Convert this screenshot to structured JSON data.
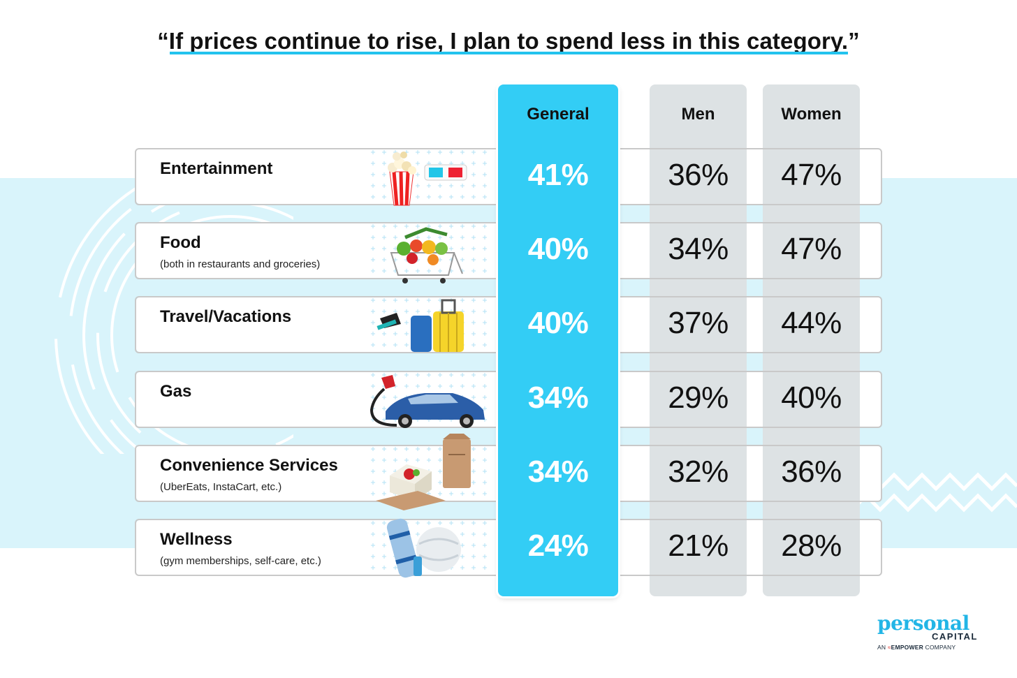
{
  "chart_data": {
    "type": "table",
    "title": "“If prices continue to rise, I plan to spend less in this category.”",
    "columns": [
      "General",
      "Men",
      "Women"
    ],
    "rows": [
      {
        "category": "Entertainment",
        "note": "",
        "icon": "popcorn-3d-glasses-icon",
        "general": "41%",
        "men": "36%",
        "women": "47%"
      },
      {
        "category": "Food",
        "note": "(both in restaurants and groceries)",
        "icon": "grocery-cart-icon",
        "general": "40%",
        "men": "34%",
        "women": "47%"
      },
      {
        "category": "Travel/Vacations",
        "note": "",
        "icon": "luggage-sunglasses-icon",
        "general": "40%",
        "men": "37%",
        "women": "44%"
      },
      {
        "category": "Gas",
        "note": "",
        "icon": "car-fuel-nozzle-icon",
        "general": "34%",
        "men": "29%",
        "women": "40%"
      },
      {
        "category": "Convenience Services",
        "note": "(UberEats, InstaCart, etc.)",
        "icon": "takeout-bag-icon",
        "general": "34%",
        "men": "32%",
        "women": "36%"
      },
      {
        "category": "Wellness",
        "note": "(gym memberships, self-care, etc.)",
        "icon": "yoga-mat-ball-icon",
        "general": "24%",
        "men": "21%",
        "women": "28%"
      }
    ]
  },
  "brand": {
    "name": "personal",
    "name2": "CAPITAL",
    "tagline_pre": "AN",
    "tagline_brand": "EMPOWER",
    "tagline_post": "COMPANY"
  },
  "colors": {
    "accent": "#33cdf5",
    "band": "#d9f4fb",
    "column_gray": "#dde2e4"
  }
}
